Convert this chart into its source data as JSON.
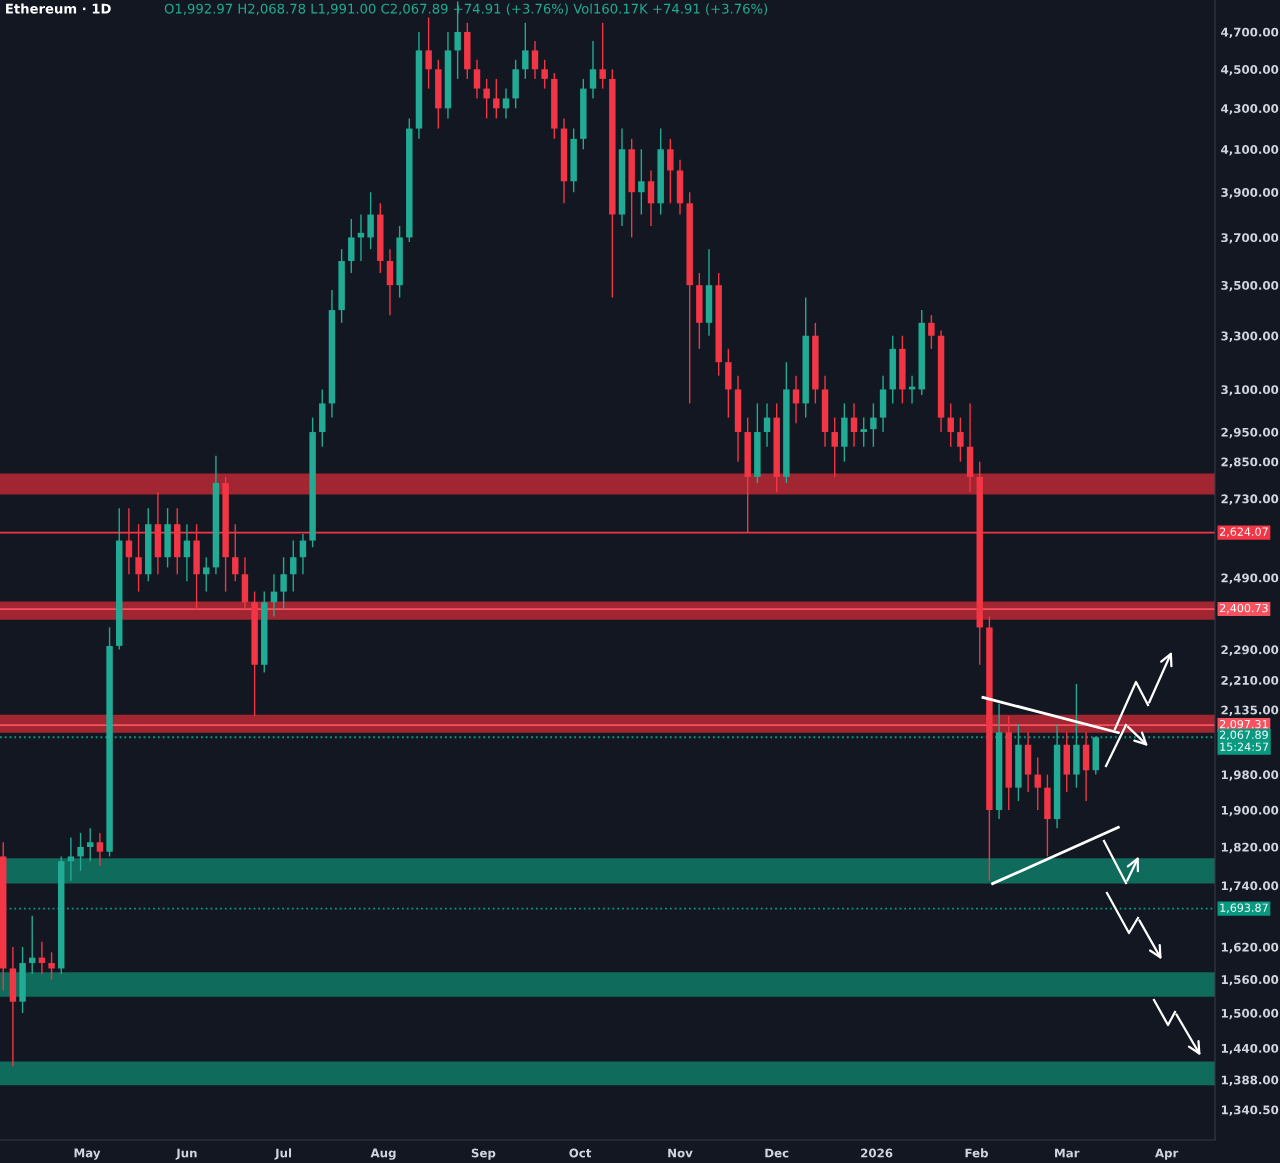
{
  "chart_data": {
    "type": "candlestick",
    "title": "Ethereum · 1D",
    "subtitle": "O1,992.97 H2,068.78 L1,991.00 C2,067.89 +74.91 (+3.76%) Vol160.17K +74.91 (+3.76%)",
    "x": [
      "2025-04-05",
      "2025-04-08",
      "2025-04-11",
      "2025-04-14",
      "2025-04-17",
      "2025-04-20",
      "2025-04-23",
      "2025-04-26",
      "2025-04-29",
      "2025-05-02",
      "2025-05-05",
      "2025-05-08",
      "2025-05-11",
      "2025-05-14",
      "2025-05-17",
      "2025-05-20",
      "2025-05-23",
      "2025-05-26",
      "2025-05-29",
      "2025-06-01",
      "2025-06-04",
      "2025-06-07",
      "2025-06-10",
      "2025-06-13",
      "2025-06-16",
      "2025-06-19",
      "2025-06-22",
      "2025-06-25",
      "2025-06-28",
      "2025-07-01",
      "2025-07-04",
      "2025-07-07",
      "2025-07-10",
      "2025-07-13",
      "2025-07-16",
      "2025-07-19",
      "2025-07-22",
      "2025-07-25",
      "2025-07-28",
      "2025-07-31",
      "2025-08-03",
      "2025-08-06",
      "2025-08-09",
      "2025-08-12",
      "2025-08-15",
      "2025-08-18",
      "2025-08-21",
      "2025-08-24",
      "2025-08-27",
      "2025-08-30",
      "2025-09-02",
      "2025-09-05",
      "2025-09-08",
      "2025-09-11",
      "2025-09-14",
      "2025-09-17",
      "2025-09-20",
      "2025-09-23",
      "2025-09-26",
      "2025-09-29",
      "2025-10-02",
      "2025-10-05",
      "2025-10-08",
      "2025-10-11",
      "2025-10-14",
      "2025-10-17",
      "2025-10-20",
      "2025-10-23",
      "2025-10-26",
      "2025-10-29",
      "2025-11-01",
      "2025-11-04",
      "2025-11-07",
      "2025-11-10",
      "2025-11-13",
      "2025-11-16",
      "2025-11-19",
      "2025-11-22",
      "2025-11-25",
      "2025-11-28",
      "2025-12-01",
      "2025-12-04",
      "2025-12-07",
      "2025-12-10",
      "2025-12-13",
      "2025-12-16",
      "2025-12-19",
      "2025-12-22",
      "2025-12-25",
      "2025-12-28",
      "2025-12-31",
      "2026-01-03",
      "2026-01-06",
      "2026-01-09",
      "2026-01-12",
      "2026-01-15",
      "2026-01-18",
      "2026-01-21",
      "2026-01-24",
      "2026-01-27",
      "2026-01-30",
      "2026-02-02",
      "2026-02-05",
      "2026-02-08",
      "2026-02-11",
      "2026-02-14",
      "2026-02-17",
      "2026-02-20",
      "2026-02-23",
      "2026-02-26",
      "2026-03-01",
      "2026-03-04",
      "2026-03-07",
      "2026-03-10"
    ],
    "ohlc": [
      [
        1800,
        1830,
        1540,
        1580
      ],
      [
        1580,
        1620,
        1410,
        1520
      ],
      [
        1520,
        1620,
        1500,
        1590
      ],
      [
        1590,
        1680,
        1570,
        1600
      ],
      [
        1600,
        1630,
        1570,
        1590
      ],
      [
        1590,
        1610,
        1560,
        1580
      ],
      [
        1580,
        1800,
        1570,
        1790
      ],
      [
        1790,
        1840,
        1750,
        1800
      ],
      [
        1800,
        1850,
        1770,
        1820
      ],
      [
        1820,
        1860,
        1790,
        1830
      ],
      [
        1830,
        1850,
        1780,
        1810
      ],
      [
        1810,
        2350,
        1800,
        2300
      ],
      [
        2300,
        2700,
        2290,
        2600
      ],
      [
        2600,
        2700,
        2500,
        2550
      ],
      [
        2550,
        2650,
        2450,
        2500
      ],
      [
        2500,
        2700,
        2480,
        2650
      ],
      [
        2650,
        2750,
        2500,
        2550
      ],
      [
        2550,
        2700,
        2520,
        2650
      ],
      [
        2650,
        2700,
        2500,
        2550
      ],
      [
        2550,
        2650,
        2480,
        2600
      ],
      [
        2600,
        2650,
        2400,
        2500
      ],
      [
        2500,
        2550,
        2450,
        2520
      ],
      [
        2520,
        2870,
        2500,
        2780
      ],
      [
        2780,
        2800,
        2450,
        2550
      ],
      [
        2550,
        2650,
        2480,
        2500
      ],
      [
        2500,
        2550,
        2400,
        2420
      ],
      [
        2420,
        2450,
        2120,
        2250
      ],
      [
        2250,
        2450,
        2230,
        2420
      ],
      [
        2420,
        2500,
        2380,
        2450
      ],
      [
        2450,
        2550,
        2400,
        2500
      ],
      [
        2500,
        2600,
        2450,
        2550
      ],
      [
        2550,
        2620,
        2500,
        2600
      ],
      [
        2600,
        3000,
        2580,
        2950
      ],
      [
        2950,
        3100,
        2900,
        3050
      ],
      [
        3050,
        3480,
        3000,
        3400
      ],
      [
        3400,
        3650,
        3350,
        3600
      ],
      [
        3600,
        3780,
        3550,
        3700
      ],
      [
        3700,
        3800,
        3600,
        3720
      ],
      [
        3700,
        3900,
        3650,
        3800
      ],
      [
        3800,
        3850,
        3550,
        3600
      ],
      [
        3600,
        3650,
        3380,
        3500
      ],
      [
        3500,
        3750,
        3450,
        3700
      ],
      [
        3700,
        4250,
        3680,
        4200
      ],
      [
        4200,
        4700,
        4150,
        4600
      ],
      [
        4600,
        4780,
        4400,
        4500
      ],
      [
        4500,
        4550,
        4200,
        4300
      ],
      [
        4300,
        4700,
        4250,
        4600
      ],
      [
        4600,
        4870,
        4450,
        4700
      ],
      [
        4700,
        4750,
        4450,
        4500
      ],
      [
        4500,
        4550,
        4350,
        4400
      ],
      [
        4400,
        4450,
        4250,
        4350
      ],
      [
        4350,
        4450,
        4250,
        4300
      ],
      [
        4300,
        4400,
        4250,
        4350
      ],
      [
        4350,
        4550,
        4300,
        4500
      ],
      [
        4500,
        4750,
        4450,
        4600
      ],
      [
        4600,
        4650,
        4450,
        4500
      ],
      [
        4500,
        4550,
        4400,
        4450
      ],
      [
        4450,
        4480,
        4150,
        4200
      ],
      [
        4200,
        4250,
        3850,
        3950
      ],
      [
        3950,
        4200,
        3900,
        4150
      ],
      [
        4150,
        4450,
        4100,
        4400
      ],
      [
        4400,
        4650,
        4350,
        4500
      ],
      [
        4500,
        4750,
        4400,
        4450
      ],
      [
        4450,
        4500,
        3450,
        3800
      ],
      [
        3800,
        4200,
        3750,
        4100
      ],
      [
        4100,
        4150,
        3700,
        3900
      ],
      [
        3900,
        4100,
        3800,
        3950
      ],
      [
        3950,
        4000,
        3750,
        3850
      ],
      [
        3850,
        4200,
        3800,
        4100
      ],
      [
        4100,
        4150,
        3850,
        4000
      ],
      [
        4000,
        4050,
        3800,
        3850
      ],
      [
        3850,
        3900,
        3050,
        3500
      ],
      [
        3500,
        3550,
        3250,
        3350
      ],
      [
        3350,
        3650,
        3300,
        3500
      ],
      [
        3500,
        3550,
        3150,
        3200
      ],
      [
        3200,
        3250,
        3000,
        3100
      ],
      [
        3100,
        3150,
        2850,
        2950
      ],
      [
        2950,
        3000,
        2624,
        2800
      ],
      [
        2800,
        3050,
        2780,
        2950
      ],
      [
        2950,
        3050,
        2900,
        3000
      ],
      [
        3000,
        3050,
        2750,
        2800
      ],
      [
        2800,
        3200,
        2780,
        3100
      ],
      [
        3100,
        3150,
        2980,
        3050
      ],
      [
        3050,
        3450,
        3000,
        3300
      ],
      [
        3300,
        3350,
        3050,
        3100
      ],
      [
        3100,
        3150,
        2900,
        2950
      ],
      [
        2950,
        3000,
        2800,
        2900
      ],
      [
        2900,
        3050,
        2850,
        3000
      ],
      [
        3000,
        3050,
        2900,
        2950
      ],
      [
        2950,
        3000,
        2900,
        2960
      ],
      [
        2960,
        3050,
        2900,
        3000
      ],
      [
        3000,
        3150,
        2950,
        3100
      ],
      [
        3100,
        3300,
        3050,
        3250
      ],
      [
        3250,
        3300,
        3050,
        3100
      ],
      [
        3100,
        3150,
        3050,
        3110
      ],
      [
        3100,
        3400,
        3080,
        3350
      ],
      [
        3350,
        3380,
        3250,
        3300
      ],
      [
        3300,
        3320,
        2950,
        3000
      ],
      [
        3000,
        3050,
        2900,
        2950
      ],
      [
        2950,
        3000,
        2850,
        2900
      ],
      [
        2900,
        3050,
        2750,
        2800
      ],
      [
        2800,
        2850,
        2250,
        2350
      ],
      [
        2350,
        2380,
        1750,
        1900
      ],
      [
        1900,
        2150,
        1880,
        2080
      ],
      [
        2080,
        2120,
        1900,
        1950
      ],
      [
        1950,
        2100,
        1920,
        2050
      ],
      [
        2050,
        2080,
        1940,
        1980
      ],
      [
        1980,
        2020,
        1900,
        1950
      ],
      [
        1950,
        1980,
        1800,
        1880
      ],
      [
        1880,
        2100,
        1860,
        2050
      ],
      [
        2050,
        2080,
        1940,
        1980
      ],
      [
        1980,
        2200,
        1950,
        2050
      ],
      [
        2050,
        2080,
        1920,
        1990
      ],
      [
        1990,
        2070,
        1980,
        2067.89
      ]
    ],
    "series": [
      {
        "type": "line",
        "color": "#ffffff",
        "x": [
          "2026-02-03",
          "2026-03-17"
        ],
        "values": [
          2166,
          2079
        ]
      },
      {
        "type": "line",
        "color": "#ffffff",
        "x": [
          "2026-02-06",
          "2026-03-17"
        ],
        "values": [
          1744,
          1862
        ]
      }
    ],
    "log": true,
    "xlim": [
      "2025-04-04",
      "2026-04-16"
    ],
    "xticks": [
      {
        "value": "2025-05-01",
        "label": "May"
      },
      {
        "value": "2025-06-01",
        "label": "Jun"
      },
      {
        "value": "2025-07-01",
        "label": "Jul"
      },
      {
        "value": "2025-08-01",
        "label": "Aug"
      },
      {
        "value": "2025-09-01",
        "label": "Sep"
      },
      {
        "value": "2025-10-01",
        "label": "Oct"
      },
      {
        "value": "2025-11-01",
        "label": "Nov"
      },
      {
        "value": "2025-12-01",
        "label": "Dec"
      },
      {
        "value": "2026-01-01",
        "label": "2026"
      },
      {
        "value": "2026-02-01",
        "label": "Feb"
      },
      {
        "value": "2026-03-01",
        "label": "Mar"
      },
      {
        "value": "2026-04-01",
        "label": "Apr"
      }
    ],
    "ylim": [
      1294,
      4878
    ],
    "yticks": [
      {
        "value": 4700,
        "label": "4,700.00"
      },
      {
        "value": 4500,
        "label": "4,500.00"
      },
      {
        "value": 4300,
        "label": "4,300.00"
      },
      {
        "value": 4100,
        "label": "4,100.00"
      },
      {
        "value": 3900,
        "label": "3,900.00"
      },
      {
        "value": 3700,
        "label": "3,700.00"
      },
      {
        "value": 3500,
        "label": "3,500.00"
      },
      {
        "value": 3300,
        "label": "3,300.00"
      },
      {
        "value": 3100,
        "label": "3,100.00"
      },
      {
        "value": 2950,
        "label": "2,950.00"
      },
      {
        "value": 2850,
        "label": "2,850.00"
      },
      {
        "value": 2730,
        "label": "2,730.00"
      },
      {
        "value": 2490,
        "label": "2,490.00"
      },
      {
        "value": 2290,
        "label": "2,290.00"
      },
      {
        "value": 2210,
        "label": "2,210.00"
      },
      {
        "value": 2135,
        "label": "2,135.00"
      },
      {
        "value": 1980,
        "label": "1,980.00"
      },
      {
        "value": 1900,
        "label": "1,900.00"
      },
      {
        "value": 1820,
        "label": "1,820.00"
      },
      {
        "value": 1740,
        "label": "1,740.00"
      },
      {
        "value": 1620,
        "label": "1,620.00"
      },
      {
        "value": 1560,
        "label": "1,560.00"
      },
      {
        "value": 1500,
        "label": "1,500.00"
      },
      {
        "value": 1440,
        "label": "1,440.00"
      },
      {
        "value": 1388,
        "label": "1,388.00"
      },
      {
        "value": 1340.5,
        "label": "1,340.50"
      }
    ],
    "bands": [
      {
        "axis": "y",
        "from": 2743,
        "to": 2811,
        "color": "#b22833"
      },
      {
        "axis": "y",
        "from": 2371,
        "to": 2422,
        "color": "#b22833"
      },
      {
        "axis": "y",
        "from": 2079,
        "to": 2123,
        "color": "#b22833"
      },
      {
        "axis": "y",
        "from": 1744,
        "to": 1796,
        "color": "#0f7462"
      },
      {
        "axis": "y",
        "from": 1529,
        "to": 1573,
        "color": "#0f7462"
      },
      {
        "axis": "y",
        "from": 1379,
        "to": 1418,
        "color": "#0f7462"
      }
    ],
    "ref_lines": [
      {
        "axis": "y",
        "value": 2624.07,
        "label": "2,624.07",
        "color": "#f23645",
        "line_style": "solid"
      },
      {
        "axis": "y",
        "value": 2400.73,
        "label": "2,400.73",
        "color": "#f7525f",
        "line_style": "solid"
      },
      {
        "axis": "y",
        "value": 2097.31,
        "label": "2,097.31",
        "color": "#f7525f",
        "line_style": "solid"
      },
      {
        "axis": "y",
        "value": 2067.89,
        "label": "2,067.89\n15:24:57",
        "color": "#089981",
        "line_style": "dotted"
      },
      {
        "axis": "y",
        "value": 1693.87,
        "label": "1,693.87",
        "color": "#089981",
        "line_style": "dotted"
      }
    ],
    "grid": false
  }
}
